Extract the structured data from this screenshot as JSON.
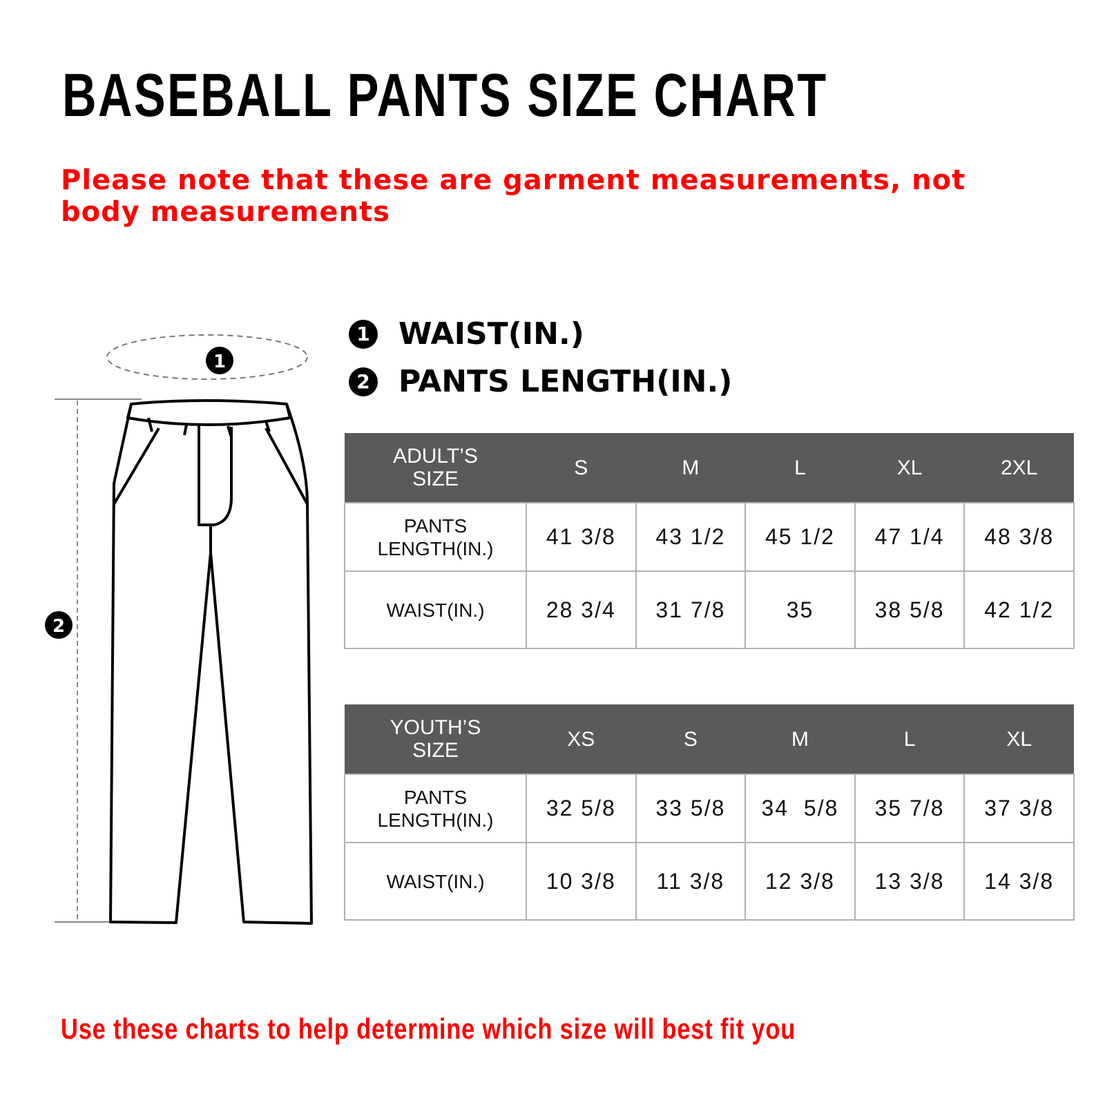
{
  "title": "BASEBALL PANTS SIZE CHART",
  "note": "Please note that these are garment measurements, not body measurements",
  "legend": [
    {
      "num": "1",
      "label": "WAIST(IN.)"
    },
    {
      "num": "2",
      "label": "PANTS LENGTH(IN.)"
    }
  ],
  "adult": {
    "header": [
      "ADULT’S SIZE",
      "S",
      "M",
      "L",
      "XL",
      "2XL"
    ],
    "rows": [
      {
        "label": "PANTS LENGTH(IN.)",
        "values": [
          "41 3/8",
          "43 1/2",
          "45 1/2",
          "47 1/4",
          "48 3/8"
        ]
      },
      {
        "label": "WAIST(IN.)",
        "values": [
          "28 3/4",
          "31 7/8",
          "35",
          "38 5/8",
          "42 1/2"
        ]
      }
    ]
  },
  "youth": {
    "header": [
      "YOUTH’S SIZE",
      "XS",
      "S",
      "M",
      "L",
      "XL"
    ],
    "rows": [
      {
        "label": "PANTS LENGTH(IN.)",
        "values": [
          "32 5/8",
          "33 5/8",
          "34  5/8",
          "35 7/8",
          "37 3/8"
        ]
      },
      {
        "label": "WAIST(IN.)",
        "values": [
          "10 3/8",
          "11 3/8",
          "12 3/8",
          "13 3/8",
          "14 3/8"
        ]
      }
    ]
  },
  "footer": "Use these charts to help determine which size will best fit you",
  "colors": {
    "accent": "#ff0000",
    "header_bg": "#5a5a5a"
  }
}
